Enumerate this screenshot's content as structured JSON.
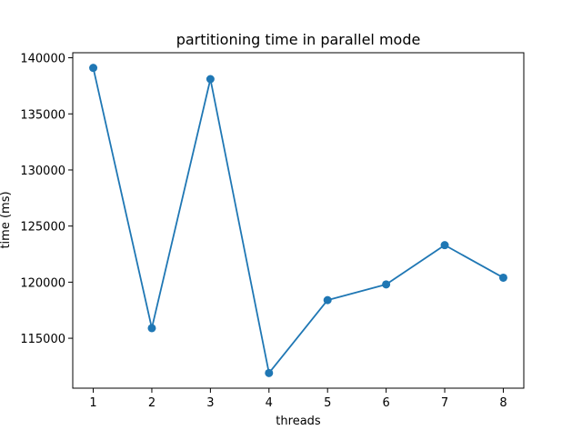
{
  "chart_data": {
    "type": "line",
    "title": "partitioning time in parallel mode",
    "xlabel": "threads",
    "ylabel": "time (ms)",
    "x": [
      1,
      2,
      3,
      4,
      5,
      6,
      7,
      8
    ],
    "series": [
      {
        "values": [
          139100,
          115900,
          138100,
          111900,
          118400,
          119800,
          123300,
          120400
        ],
        "color": "#1f77b4",
        "marker": "circle"
      }
    ],
    "xticks": [
      "1",
      "2",
      "3",
      "4",
      "5",
      "6",
      "7",
      "8"
    ],
    "yticks": [
      "115000",
      "120000",
      "125000",
      "130000",
      "135000",
      "140000"
    ],
    "xlim": [
      0.65,
      8.35
    ],
    "ylim": [
      110550,
      140450
    ],
    "grid": false,
    "legend": "none"
  }
}
